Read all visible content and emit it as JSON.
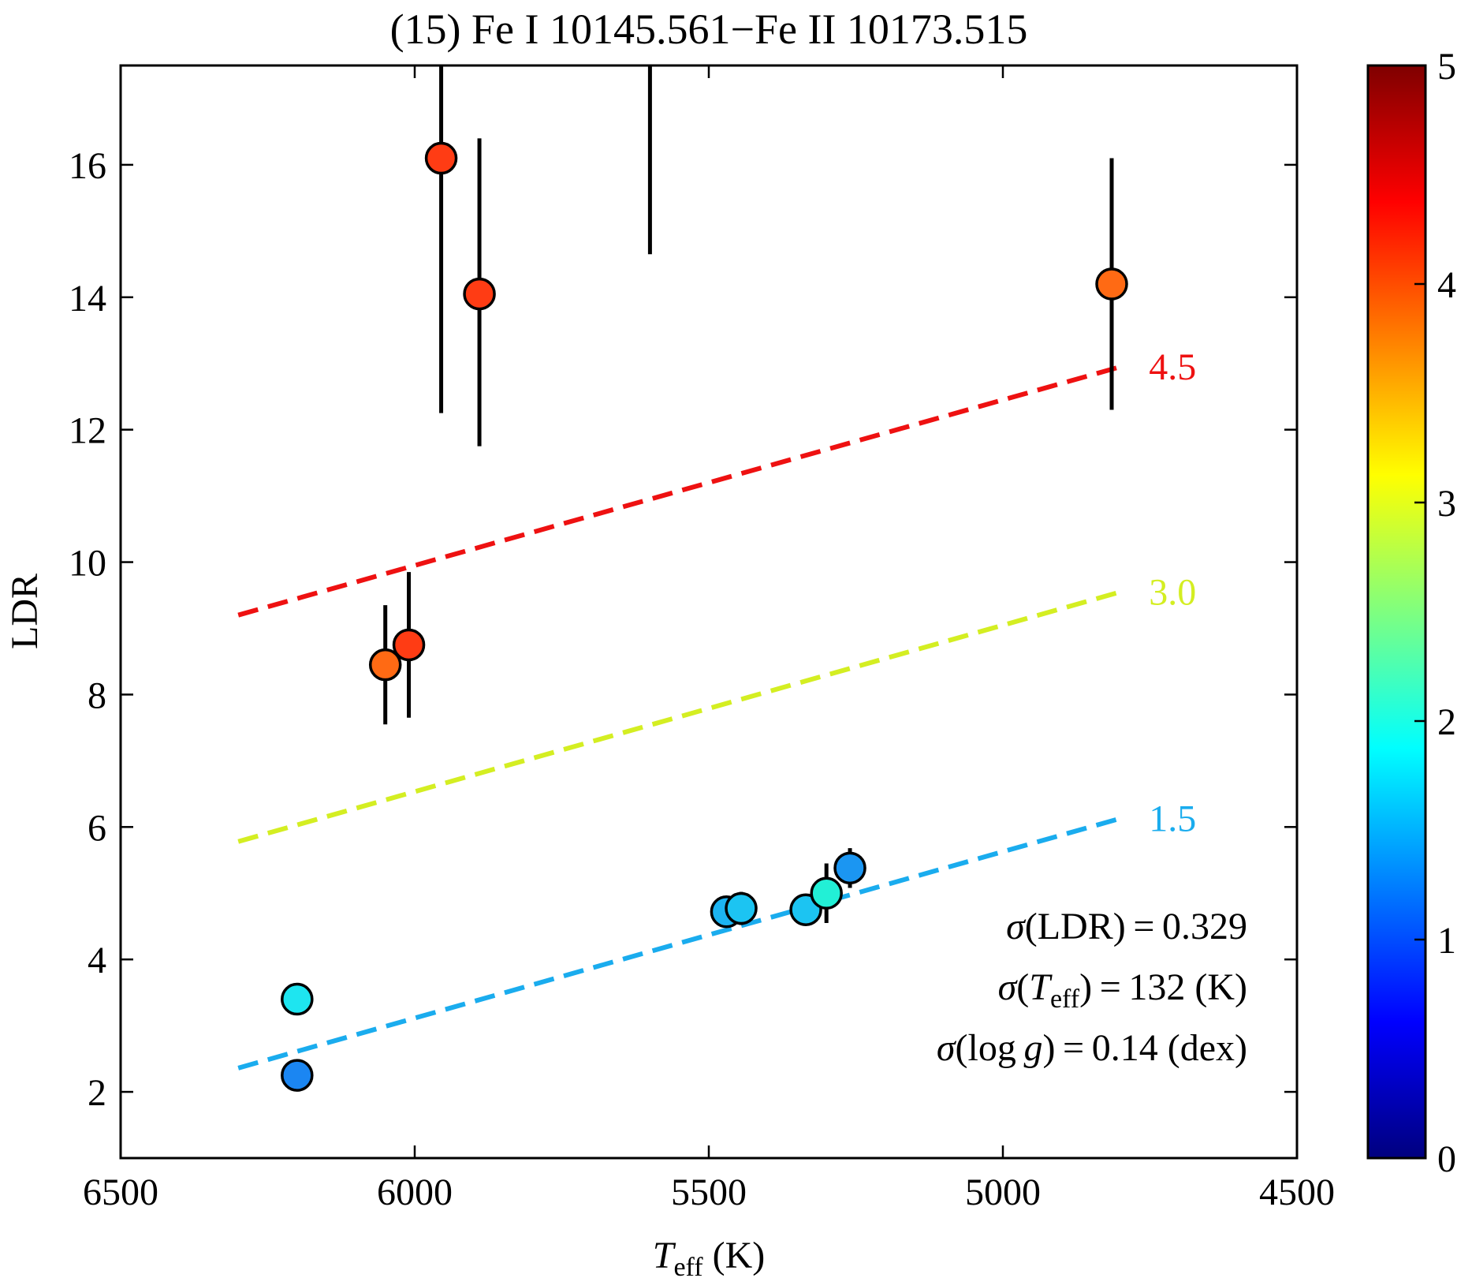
{
  "chart_data": {
    "type": "scatter",
    "title": "(15) Fe I 10145.561−Fe II 10173.515",
    "xlabel_main": "T",
    "xlabel_sub": "eff",
    "xlabel_unit": " (K)",
    "ylabel": "LDR",
    "xlim": [
      6500,
      4500
    ],
    "ylim": [
      1,
      17.5
    ],
    "xticks": [
      6500,
      6000,
      5500,
      5000,
      4500
    ],
    "xtick_labels": [
      "6500",
      "6000",
      "5500",
      "5000",
      "4500"
    ],
    "yticks": [
      2,
      4,
      6,
      8,
      10,
      12,
      14,
      16
    ],
    "ytick_labels": [
      "2",
      "4",
      "6",
      "8",
      "10",
      "12",
      "14",
      "16"
    ],
    "colorbar": {
      "colormap": "jet",
      "range": [
        0,
        5
      ],
      "ticks": [
        0,
        1,
        2,
        3,
        4,
        5
      ],
      "tick_labels": [
        "0",
        "1",
        "2",
        "3",
        "4",
        "5"
      ],
      "colors": [
        "#00007f",
        "#0000ff",
        "#007fff",
        "#00ffff",
        "#7fff7f",
        "#ffff00",
        "#ff7f00",
        "#ff0000",
        "#7f0000"
      ]
    },
    "points": [
      {
        "teff": 6200,
        "ldr": 3.4,
        "logg": 2.0,
        "err_low": 0,
        "err_high": 0,
        "color": "#1ee5f0"
      },
      {
        "teff": 6200,
        "ldr": 2.25,
        "logg": 1.2,
        "err_low": 0,
        "err_high": 0,
        "color": "#1b86f2"
      },
      {
        "teff": 6050,
        "ldr": 8.45,
        "logg": 4.0,
        "err_low": 0.9,
        "err_high": 0.9,
        "color": "#ff6a14"
      },
      {
        "teff": 6010,
        "ldr": 8.75,
        "logg": 4.3,
        "err_low": 1.1,
        "err_high": 1.1,
        "color": "#ff3c14"
      },
      {
        "teff": 5955,
        "ldr": 16.1,
        "logg": 4.4,
        "err_low": 3.85,
        "err_high": 2.0,
        "color": "#ff3c14"
      },
      {
        "teff": 5890,
        "ldr": 14.05,
        "logg": 4.4,
        "err_low": 2.3,
        "err_high": 2.35,
        "color": "#ff3c14"
      },
      {
        "teff": 5470,
        "ldr": 4.72,
        "logg": 1.6,
        "err_low": 0,
        "err_high": 0,
        "color": "#1cb4f2"
      },
      {
        "teff": 5445,
        "ldr": 4.77,
        "logg": 1.7,
        "err_low": 0.25,
        "err_high": 0.25,
        "color": "#1cc4f2"
      },
      {
        "teff": 5335,
        "ldr": 4.75,
        "logg": 1.7,
        "err_low": 0,
        "err_high": 0,
        "color": "#1cc4f2"
      },
      {
        "teff": 5300,
        "ldr": 5.0,
        "logg": 2.0,
        "err_low": 0.45,
        "err_high": 0.45,
        "color": "#22f0d6"
      },
      {
        "teff": 5260,
        "ldr": 5.38,
        "logg": 1.3,
        "err_low": 0.3,
        "err_high": 0.3,
        "color": "#1b96f2"
      },
      {
        "teff": 4815,
        "ldr": 14.2,
        "logg": 4.0,
        "err_low": 1.9,
        "err_high": 1.9,
        "color": "#ff6a14"
      }
    ],
    "offscale_error_bar": {
      "teff": 5600,
      "ldr_low": 14.65,
      "ldr_high": 17.5
    },
    "series": [
      {
        "name": "4.5",
        "logg": 4.5,
        "color": "#ee1111",
        "x": [
          6300,
          4800
        ],
        "y": [
          9.2,
          12.95
        ]
      },
      {
        "name": "3.0",
        "logg": 3.0,
        "color": "#d4ee22",
        "x": [
          6300,
          4800
        ],
        "y": [
          5.78,
          9.55
        ]
      },
      {
        "name": "1.5",
        "logg": 1.5,
        "color": "#1aacee",
        "x": [
          6300,
          4800
        ],
        "y": [
          2.36,
          6.13
        ]
      }
    ],
    "annotations": [
      {
        "prefix": "σ",
        "open": "(",
        "main": "LDR",
        "sub": "",
        "close": ")",
        "rest": " = 0.329"
      },
      {
        "prefix": "σ",
        "open": "(",
        "main": "T",
        "sub": "eff",
        "close": ")",
        "rest": " = 132 (K)"
      },
      {
        "prefix": "σ",
        "open": "(log ",
        "main": "g",
        "sub": "",
        "close": ")",
        "rest": " = 0.14 (dex)"
      }
    ]
  }
}
